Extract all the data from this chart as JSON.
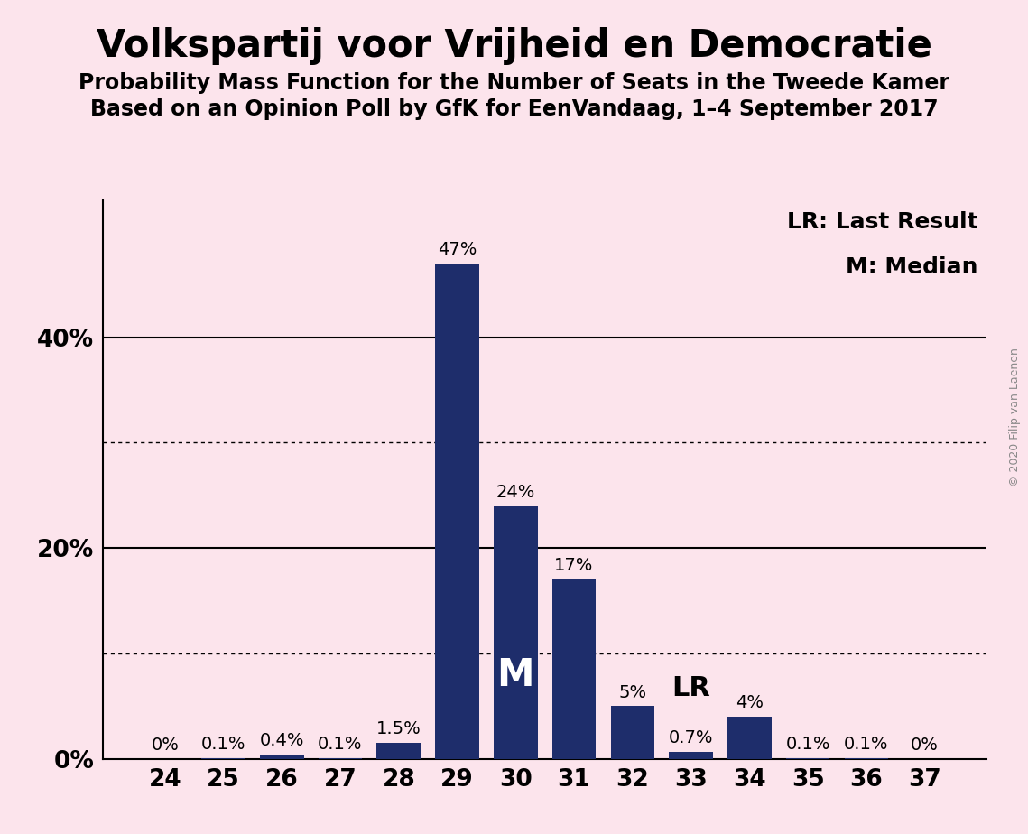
{
  "title": "Volkspartij voor Vrijheid en Democratie",
  "subtitle1": "Probability Mass Function for the Number of Seats in the Tweede Kamer",
  "subtitle2": "Based on an Opinion Poll by GfK for EenVandaag, 1–4 September 2017",
  "copyright": "© 2020 Filip van Laenen",
  "categories": [
    24,
    25,
    26,
    27,
    28,
    29,
    30,
    31,
    32,
    33,
    34,
    35,
    36,
    37
  ],
  "values": [
    0.0,
    0.1,
    0.4,
    0.1,
    1.5,
    47.0,
    24.0,
    17.0,
    5.0,
    0.7,
    4.0,
    0.1,
    0.1,
    0.0
  ],
  "labels": [
    "0%",
    "0.1%",
    "0.4%",
    "0.1%",
    "1.5%",
    "47%",
    "24%",
    "17%",
    "5%",
    "0.7%",
    "4%",
    "0.1%",
    "0.1%",
    "0%"
  ],
  "bar_color": "#1e2d6b",
  "background_color": "#fce4ec",
  "median_seat": 30,
  "lr_seat": 33,
  "legend_lr": "LR: Last Result",
  "legend_m": "M: Median",
  "median_label": "M",
  "lr_label": "LR",
  "ylim": [
    0,
    53
  ],
  "yticks": [
    0,
    20,
    40
  ],
  "ytick_labels": [
    "0%",
    "20%",
    "40%"
  ],
  "dotted_lines": [
    10,
    30
  ],
  "solid_lines": [
    20,
    40
  ],
  "title_fontsize": 30,
  "subtitle_fontsize": 17,
  "label_fontsize": 14,
  "tick_fontsize": 19,
  "legend_fontsize": 18,
  "median_label_fontsize": 30,
  "lr_label_fontsize": 22
}
